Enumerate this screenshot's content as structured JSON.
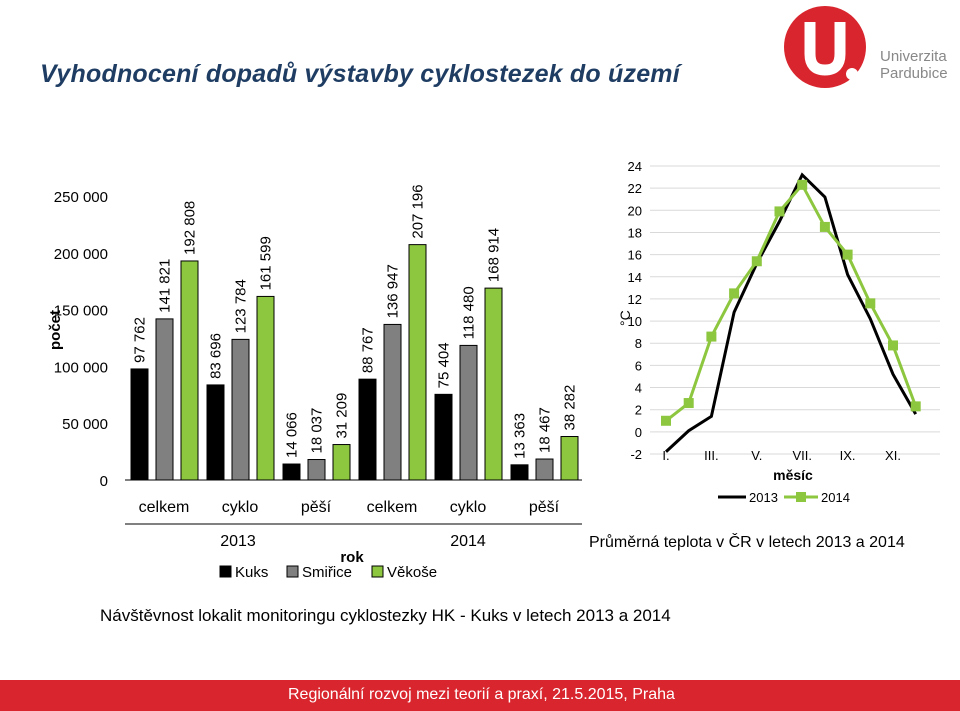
{
  "header": {
    "title": "Vyhodnocení dopadů výstavby cyklostezek do území",
    "logo_line1": "Univerzita",
    "logo_line2": "Pardubice"
  },
  "colors": {
    "kuks": "#000000",
    "smirice": "#808080",
    "vekose": "#8dc63f",
    "brand": "#d9262e"
  },
  "chart_data": [
    {
      "type": "bar",
      "ylabel": "počet",
      "xlabel": "rok",
      "ylim": [
        0,
        250000
      ],
      "yticks": [
        0,
        50000,
        100000,
        150000,
        200000,
        250000
      ],
      "ytick_labels": [
        "0",
        "50 000",
        "100 000",
        "150 000",
        "200 000",
        "250 000"
      ],
      "year_labels": [
        "2013",
        "2014"
      ],
      "categories": [
        "celkem",
        "cyklo",
        "pěší",
        "celkem",
        "cyklo",
        "pěší"
      ],
      "series": [
        {
          "name": "Kuks",
          "values": [
            97762,
            83696,
            14066,
            88767,
            75404,
            13363
          ],
          "labels": [
            "97 762",
            "83 696",
            "14 066",
            "88 767",
            "75 404",
            "13 363"
          ]
        },
        {
          "name": "Smiřice",
          "values": [
            141821,
            123784,
            18037,
            136947,
            118480,
            18467
          ],
          "labels": [
            "141 821",
            "123 784",
            "18 037",
            "136 947",
            "118 480",
            "18 467"
          ]
        },
        {
          "name": "Věkoše",
          "values": [
            192808,
            161599,
            31209,
            207196,
            168914,
            38282
          ],
          "labels": [
            "192 808",
            "161 599",
            "31 209",
            "207 196",
            "168 914",
            "38 282"
          ]
        }
      ],
      "caption": "Návštěvnost lokalit monitoringu cyklostezky HK - Kuks v letech 2013 a 2014"
    },
    {
      "type": "line",
      "ylabel": "°C",
      "xlabel": "měsíc",
      "ylim": [
        -2,
        24
      ],
      "yticks": [
        -2,
        0,
        2,
        4,
        6,
        8,
        10,
        12,
        14,
        16,
        18,
        20,
        22,
        24
      ],
      "x": [
        1,
        2,
        3,
        4,
        5,
        6,
        7,
        8,
        9,
        10,
        11,
        12
      ],
      "xtick_labels": [
        "I.",
        "III.",
        "V.",
        "VII.",
        "IX.",
        "XI."
      ],
      "series": [
        {
          "name": "2013",
          "values": [
            -1.8,
            0.1,
            1.4,
            10.8,
            15.2,
            19.0,
            23.2,
            21.2,
            14.2,
            10.2,
            5.2,
            1.6
          ]
        },
        {
          "name": "2014",
          "values": [
            1.0,
            2.6,
            8.6,
            12.5,
            15.4,
            19.9,
            22.3,
            18.5,
            16.0,
            11.6,
            7.8,
            2.3
          ]
        }
      ],
      "caption": "Průměrná teplota v ČR v letech 2013 a 2014"
    }
  ],
  "footer": {
    "text": "Regionální rozvoj mezi teorií a praxí, 21.5.2015, Praha"
  }
}
